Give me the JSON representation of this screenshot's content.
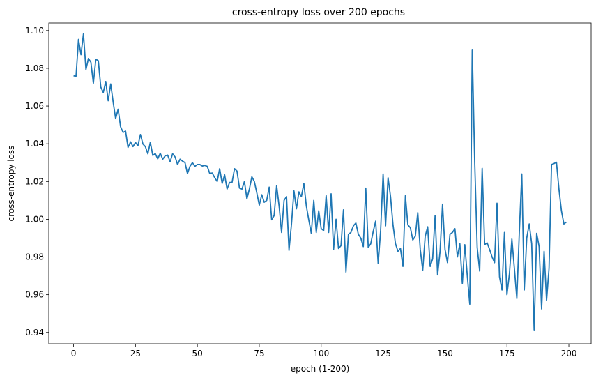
{
  "chart_data": {
    "type": "line",
    "title": "cross-entropy loss over 200 epochs",
    "xlabel": "epoch (1-200)",
    "ylabel": "cross-entropy loss",
    "xlim": [
      -10,
      209
    ],
    "ylim": [
      0.934,
      1.104
    ],
    "xticks": [
      0,
      25,
      50,
      75,
      100,
      125,
      150,
      175,
      200
    ],
    "yticks": [
      0.94,
      0.96,
      0.98,
      1.0,
      1.02,
      1.04,
      1.06,
      1.08,
      1.1
    ],
    "ytick_labels": [
      "0.94",
      "0.96",
      "0.98",
      "1.00",
      "1.02",
      "1.04",
      "1.06",
      "1.08",
      "1.10"
    ],
    "grid": false,
    "line_color": "#1f77b4",
    "series": [
      {
        "values": [
          1.076,
          1.0758,
          1.0953,
          1.0872,
          1.0983,
          1.0793,
          1.0852,
          1.0832,
          1.0721,
          1.0848,
          1.084,
          1.07,
          1.0672,
          1.073,
          1.0628,
          1.0717,
          1.062,
          1.0533,
          1.0583,
          1.049,
          1.046,
          1.0467,
          1.0381,
          1.041,
          1.0385,
          1.0407,
          1.039,
          1.0449,
          1.0399,
          1.0385,
          1.0347,
          1.0408,
          1.0338,
          1.0348,
          1.032,
          1.035,
          1.0318,
          1.0336,
          1.034,
          1.0305,
          1.0347,
          1.033,
          1.029,
          1.0318,
          1.0308,
          1.03,
          1.0242,
          1.028,
          1.03,
          1.028,
          1.029,
          1.029,
          1.0282,
          1.0285,
          1.028,
          1.0242,
          1.0245,
          1.022,
          1.02,
          1.0268,
          1.019,
          1.0235,
          1.016,
          1.0195,
          1.0195,
          1.0268,
          1.0255,
          1.0165,
          1.016,
          1.02,
          1.0108,
          1.016,
          1.0225,
          1.02,
          1.014,
          1.0075,
          1.013,
          1.009,
          1.01,
          1.017,
          0.9997,
          1.002,
          1.0178,
          1.007,
          0.993,
          1.01,
          1.012,
          0.9835,
          0.9975,
          1.015,
          1.0055,
          1.0145,
          1.012,
          1.019,
          1.007,
          0.9995,
          0.9925,
          1.01,
          0.993,
          1.0045,
          0.995,
          0.994,
          1.0125,
          0.993,
          1.0135,
          0.984,
          1.0,
          0.9845,
          0.986,
          1.005,
          0.972,
          0.992,
          0.993,
          0.9965,
          0.998,
          0.992,
          0.99,
          0.9855,
          1.0165,
          0.985,
          0.987,
          0.9935,
          0.999,
          0.9765,
          0.994,
          1.024,
          0.9965,
          1.022,
          1.012,
          0.997,
          0.987,
          0.983,
          0.9845,
          0.975,
          1.0125,
          0.997,
          0.9955,
          0.989,
          0.991,
          1.0035,
          0.984,
          0.973,
          0.991,
          0.996,
          0.975,
          0.979,
          1.002,
          0.9705,
          0.983,
          1.008,
          0.984,
          0.977,
          0.992,
          0.993,
          0.995,
          0.98,
          0.987,
          0.966,
          0.9865,
          0.97,
          0.955,
          1.09,
          1.03,
          0.985,
          0.9725,
          1.027,
          0.9865,
          0.9875,
          0.984,
          0.98,
          0.977,
          1.0085,
          0.9695,
          0.9625,
          0.993,
          0.96,
          0.971,
          0.9895,
          0.974,
          0.958,
          0.993,
          1.024,
          0.9625,
          0.99,
          0.9975,
          0.987,
          0.941,
          0.9925,
          0.9855,
          0.9525,
          0.983,
          0.957,
          0.974,
          1.029,
          1.0295,
          1.0302,
          1.016,
          1.0045,
          0.9975,
          0.9985
        ]
      }
    ]
  }
}
